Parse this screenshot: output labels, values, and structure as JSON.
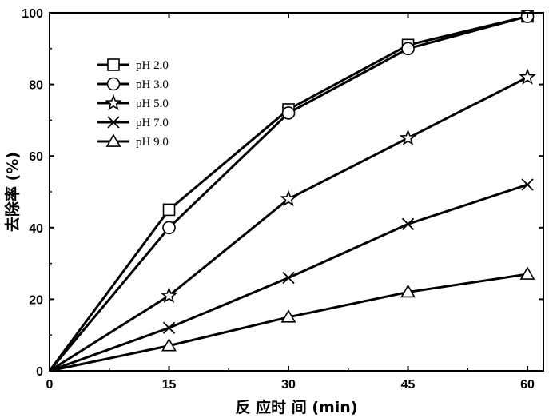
{
  "chart_data": {
    "type": "line",
    "xlabel": "反 应时 间 (min)",
    "ylabel": "去除率 (%)",
    "xlim": [
      0,
      62
    ],
    "ylim": [
      0,
      100
    ],
    "xticks": [
      0,
      15,
      30,
      45,
      60
    ],
    "yticks": [
      0,
      20,
      40,
      60,
      80,
      100
    ],
    "legend_position": "top-left",
    "grid": false,
    "series": [
      {
        "name": "pH 2.0",
        "marker": "square",
        "x": [
          0,
          15,
          30,
          45,
          60
        ],
        "y": [
          0,
          45,
          73,
          91,
          99
        ]
      },
      {
        "name": "pH 3.0",
        "marker": "circle",
        "x": [
          0,
          15,
          30,
          45,
          60
        ],
        "y": [
          0,
          40,
          72,
          90,
          99
        ]
      },
      {
        "name": "pH 5.0",
        "marker": "star",
        "x": [
          0,
          15,
          30,
          45,
          60
        ],
        "y": [
          0,
          21,
          48,
          65,
          82
        ]
      },
      {
        "name": "pH 7.0",
        "marker": "x",
        "x": [
          0,
          15,
          30,
          45,
          60
        ],
        "y": [
          0,
          12,
          26,
          41,
          52
        ]
      },
      {
        "name": "pH 9.0",
        "marker": "triangle",
        "x": [
          0,
          15,
          30,
          45,
          60
        ],
        "y": [
          0,
          7,
          15,
          22,
          27
        ]
      }
    ]
  }
}
